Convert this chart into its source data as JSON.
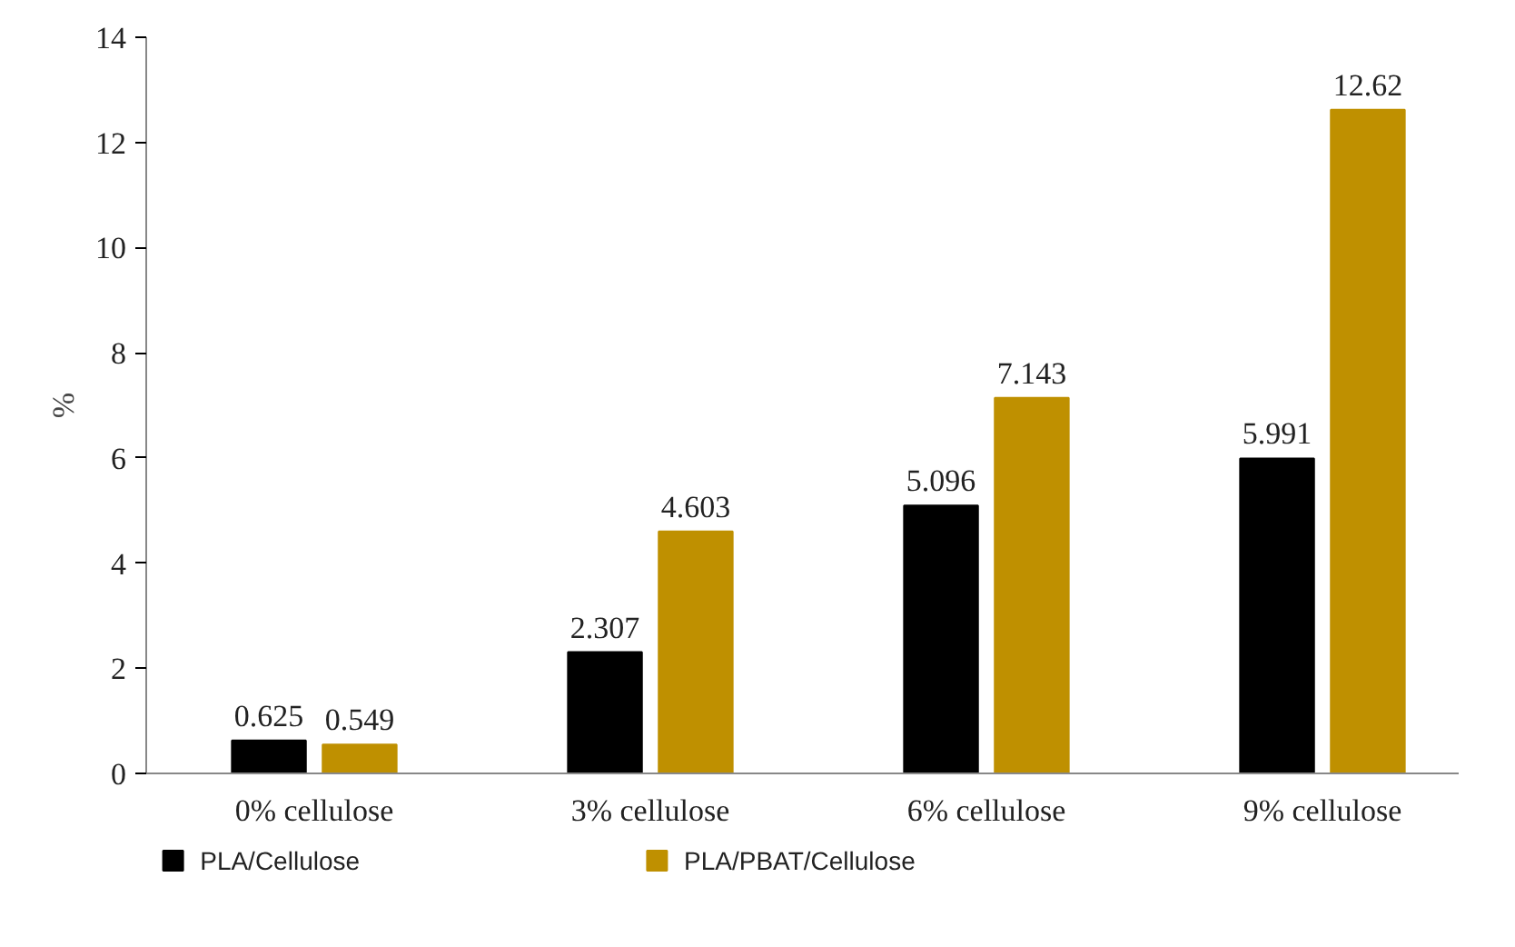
{
  "chart_data": {
    "type": "bar",
    "ylabel": "%",
    "categories": [
      "0% cellulose",
      "3% cellulose",
      "6% cellulose",
      "9% cellulose"
    ],
    "series": [
      {
        "name": "PLA/Cellulose",
        "color": "#000000",
        "values": [
          0.625,
          2.307,
          5.096,
          5.991
        ]
      },
      {
        "name": "PLA/PBAT/Cellulose",
        "color": "#bf9000",
        "values": [
          0.549,
          4.603,
          7.143,
          12.62
        ]
      }
    ],
    "ylim": [
      0,
      14
    ],
    "yticks": [
      0,
      2,
      4,
      6,
      8,
      10,
      12,
      14
    ],
    "data_labels": true,
    "grid": false,
    "legend": "bottom"
  }
}
